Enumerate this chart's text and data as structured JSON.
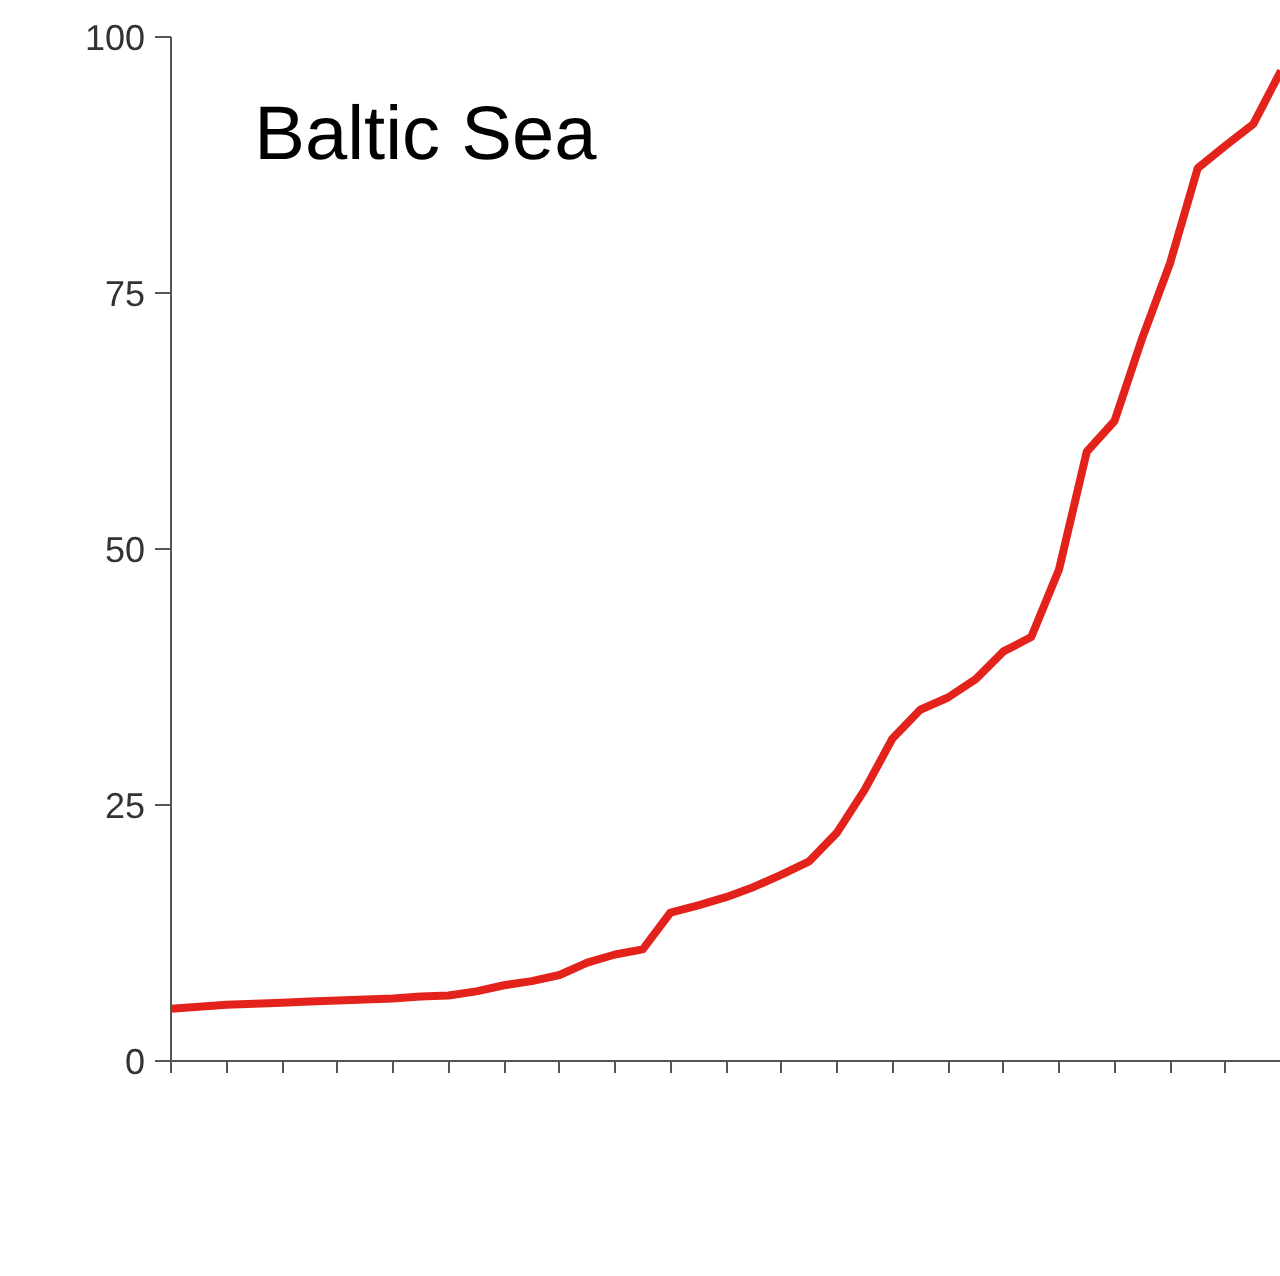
{
  "chart_data": {
    "type": "line",
    "title": "Baltic Sea",
    "categories": [
      null,
      null,
      null,
      null,
      null,
      null,
      null,
      null,
      null,
      null,
      null,
      null,
      null,
      null,
      null,
      null,
      null,
      null,
      null,
      null,
      null,
      null,
      null,
      null,
      null,
      null,
      null,
      null,
      null,
      null,
      null,
      null,
      null,
      null,
      null,
      null,
      null,
      null,
      null,
      null,
      null
    ],
    "series": [
      {
        "color": "#e3231b",
        "values": [
          5.1,
          5.3,
          5.5,
          5.6,
          5.7,
          5.8,
          5.9,
          6.0,
          6.1,
          6.3,
          6.4,
          6.8,
          7.4,
          7.8,
          8.4,
          9.6,
          10.4,
          10.9,
          14.5,
          15.2,
          16.0,
          17.0,
          18.2,
          19.5,
          22.3,
          26.5,
          31.5,
          34.3,
          35.5,
          37.3,
          40.0,
          41.4,
          48.0,
          59.5,
          62.5,
          70.6,
          77.9,
          87.2,
          89.4,
          91.5,
          96.7
        ]
      }
    ],
    "ylim": [
      0,
      100
    ],
    "yticks": [
      0,
      25,
      50,
      75,
      100
    ],
    "grid": false,
    "marker": "none",
    "line_style": "solid"
  }
}
